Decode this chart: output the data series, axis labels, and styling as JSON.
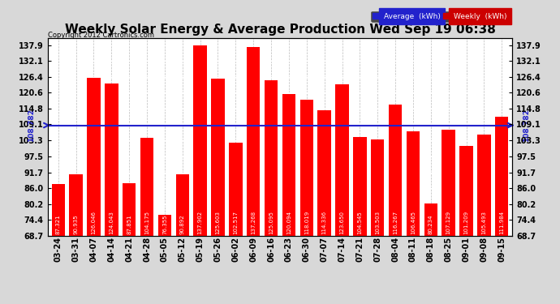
{
  "title": "Weekly Solar Energy & Average Production Wed Sep 19 06:38",
  "copyright": "Copyright 2012 Cartronics.com",
  "categories": [
    "03-24",
    "03-31",
    "04-07",
    "04-14",
    "04-21",
    "04-28",
    "05-05",
    "05-12",
    "05-19",
    "05-26",
    "06-02",
    "06-09",
    "06-16",
    "06-23",
    "06-30",
    "07-07",
    "07-14",
    "07-21",
    "07-28",
    "08-04",
    "08-11",
    "08-18",
    "08-25",
    "09-01",
    "09-08",
    "09-15"
  ],
  "values": [
    87.321,
    90.935,
    126.046,
    124.043,
    87.851,
    104.175,
    76.355,
    90.892,
    137.902,
    125.603,
    102.517,
    137.268,
    125.095,
    120.094,
    118.019,
    114.336,
    123.65,
    104.545,
    103.503,
    116.267,
    106.465,
    80.234,
    107.129,
    101.209,
    105.493,
    111.984
  ],
  "average": 108.782,
  "bar_color": "#ff0000",
  "average_line_color": "#2222cc",
  "avg_label_text": "108.782",
  "legend_avg_bg": "#2222cc",
  "legend_weekly_bg": "#cc0000",
  "legend_avg_text": "Average  (kWh)",
  "legend_weekly_text": "Weekly  (kWh)",
  "ylim_min": 68.7,
  "ylim_max": 140.5,
  "yticks": [
    68.7,
    74.4,
    80.2,
    86.0,
    91.7,
    97.5,
    103.3,
    109.1,
    114.8,
    120.6,
    126.4,
    132.1,
    137.9
  ],
  "bg_color": "#d8d8d8",
  "plot_bg_color": "#ffffff",
  "grid_color": "#aaaaaa",
  "title_fontsize": 11,
  "tick_fontsize": 7,
  "bar_width": 0.75
}
